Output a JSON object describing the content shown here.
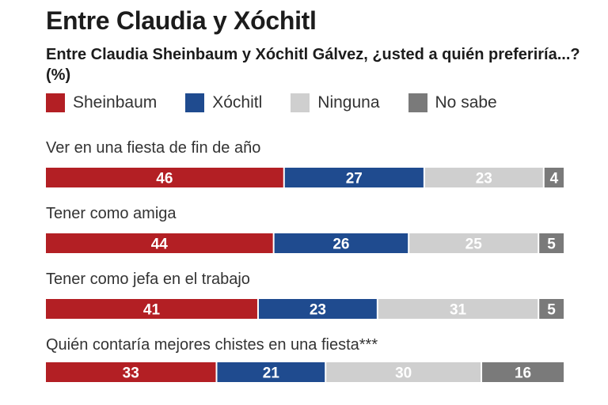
{
  "title": "Entre Claudia y Xóchitl",
  "subtitle": "Entre Claudia Sheinbaum y Xóchitl Gálvez, ¿usted a quién preferiría...? (%)",
  "legend": [
    {
      "name": "Sheinbaum",
      "color": "#b31f24"
    },
    {
      "name": "Xóchitl",
      "color": "#1f4b8f"
    },
    {
      "name": "Ninguna",
      "color": "#cfcfcf"
    },
    {
      "name": "No sabe",
      "color": "#7a7a7a"
    }
  ],
  "chart_data": {
    "type": "bar",
    "orientation": "horizontal-stacked",
    "title": "Entre Claudia y Xóchitl",
    "subtitle": "Entre Claudia Sheinbaum y Xóchitl Gálvez, ¿usted a quién preferiría...? (%)",
    "categories": [
      "Ver en una fiesta de fin de año",
      "Tener como amiga",
      "Tener como jefa en el trabajo",
      "Quién contaría mejores chistes en una fiesta***"
    ],
    "series": [
      {
        "name": "Sheinbaum",
        "color": "#b31f24",
        "values": [
          46,
          44,
          41,
          33
        ]
      },
      {
        "name": "Xóchitl",
        "color": "#1f4b8f",
        "values": [
          27,
          26,
          23,
          21
        ]
      },
      {
        "name": "Ninguna",
        "color": "#cfcfcf",
        "values": [
          23,
          25,
          31,
          30
        ]
      },
      {
        "name": "No sabe",
        "color": "#7a7a7a",
        "values": [
          4,
          5,
          5,
          16
        ]
      }
    ],
    "xlim": [
      0,
      100
    ],
    "legend_position": "top",
    "grid": false
  }
}
